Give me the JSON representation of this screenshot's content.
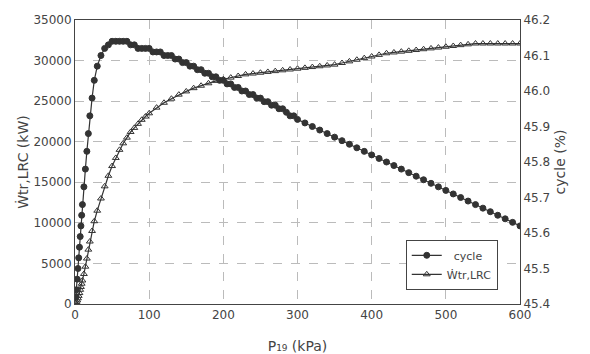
{
  "chart_data": {
    "type": "line",
    "xlabel": "P₁₉ (kPa)",
    "ylabel": "Ẇtr,LRC (kW)",
    "y2label": "cycle (%)",
    "xlim": [
      0,
      600
    ],
    "ylim": [
      0,
      35000
    ],
    "y2lim": [
      45.4,
      46.2
    ],
    "xticks": [
      0,
      100,
      200,
      300,
      400,
      500,
      600
    ],
    "yticks": [
      0,
      5000,
      10000,
      15000,
      20000,
      25000,
      30000,
      35000
    ],
    "y2ticks": [
      45.4,
      45.5,
      45.6,
      45.7,
      45.8,
      45.9,
      {
        "value": 46.0,
        "label": "46.0"
      },
      46.1,
      46.2
    ],
    "grid": true,
    "legend": "lower right",
    "background_color": "#ffffff",
    "grid_color": "#bbbbbb",
    "series": [
      {
        "name": "Ẇtr,LRC",
        "color": "#333333",
        "marker": "triangle",
        "axis": "y",
        "x": [
          1,
          2,
          3,
          4,
          5,
          6,
          7,
          8,
          9,
          10,
          12,
          14,
          16,
          18,
          20,
          23,
          26,
          30,
          35,
          40,
          45,
          50,
          55,
          60,
          65,
          70,
          75,
          80,
          85,
          90,
          95,
          100,
          110,
          120,
          130,
          140,
          150,
          160,
          170,
          180,
          190,
          200,
          210,
          220,
          230,
          240,
          250,
          260,
          270,
          280,
          290,
          300,
          310,
          320,
          330,
          340,
          350,
          360,
          370,
          380,
          390,
          400,
          410,
          420,
          430,
          440,
          450,
          460,
          470,
          480,
          490,
          500,
          510,
          520,
          530,
          540,
          550,
          560,
          570,
          580,
          590,
          600
        ],
        "values": [
          100,
          250,
          450,
          700,
          1000,
          1350,
          1750,
          2100,
          2500,
          2900,
          3700,
          4600,
          5600,
          6700,
          7700,
          9000,
          10200,
          11500,
          13000,
          14500,
          15800,
          17000,
          18000,
          19000,
          19800,
          20500,
          21200,
          21700,
          22200,
          22700,
          23100,
          23500,
          24200,
          24800,
          25300,
          25800,
          26200,
          26600,
          26900,
          27200,
          27500,
          27700,
          27900,
          28100,
          28300,
          28400,
          28500,
          28600,
          28700,
          28800,
          28900,
          29000,
          29100,
          29200,
          29300,
          29400,
          29500,
          29700,
          29900,
          30100,
          30300,
          30500,
          30700,
          30900,
          31000,
          31100,
          31200,
          31300,
          31400,
          31500,
          31600,
          31700,
          31800,
          31900,
          32000,
          32100,
          32100,
          32100,
          32100,
          32100,
          32100,
          32100
        ]
      },
      {
        "name": "  cycle",
        "color": "#333333",
        "marker": "circle",
        "axis": "y2",
        "x": [
          1,
          2,
          3,
          4,
          5,
          6,
          7,
          8,
          9,
          10,
          12,
          14,
          16,
          18,
          20,
          23,
          26,
          30,
          35,
          40,
          45,
          50,
          55,
          60,
          65,
          70,
          75,
          80,
          85,
          90,
          95,
          100,
          105,
          110,
          115,
          120,
          125,
          130,
          135,
          140,
          145,
          150,
          155,
          160,
          165,
          170,
          175,
          180,
          185,
          190,
          195,
          200,
          205,
          210,
          215,
          220,
          225,
          230,
          235,
          240,
          245,
          250,
          255,
          260,
          265,
          270,
          275,
          280,
          285,
          290,
          295,
          300,
          310,
          320,
          330,
          340,
          350,
          360,
          370,
          380,
          390,
          400,
          410,
          420,
          430,
          440,
          450,
          460,
          470,
          480,
          490,
          500,
          510,
          520,
          530,
          540,
          550,
          560,
          570,
          580,
          590,
          600
        ],
        "values": [
          45.42,
          45.44,
          45.47,
          45.5,
          45.53,
          45.56,
          45.59,
          45.62,
          45.65,
          45.68,
          45.73,
          45.78,
          45.83,
          45.88,
          45.93,
          45.98,
          46.03,
          46.07,
          46.1,
          46.12,
          46.13,
          46.14,
          46.14,
          46.14,
          46.14,
          46.14,
          46.13,
          46.13,
          46.12,
          46.12,
          46.12,
          46.12,
          46.11,
          46.11,
          46.11,
          46.1,
          46.1,
          46.1,
          46.09,
          46.09,
          46.08,
          46.08,
          46.07,
          46.07,
          46.06,
          46.06,
          46.05,
          46.05,
          46.04,
          46.04,
          46.03,
          46.03,
          46.02,
          46.02,
          46.01,
          46.01,
          46.0,
          46.0,
          45.99,
          45.99,
          45.98,
          45.98,
          45.97,
          45.97,
          45.96,
          45.96,
          45.95,
          45.95,
          45.94,
          45.93,
          45.93,
          45.92,
          45.91,
          45.9,
          45.89,
          45.88,
          45.87,
          45.86,
          45.85,
          45.84,
          45.83,
          45.82,
          45.81,
          45.8,
          45.79,
          45.78,
          45.77,
          45.76,
          45.75,
          45.74,
          45.73,
          45.72,
          45.71,
          45.7,
          45.69,
          45.68,
          45.67,
          45.66,
          45.65,
          45.64,
          45.63,
          45.62
        ]
      }
    ]
  }
}
